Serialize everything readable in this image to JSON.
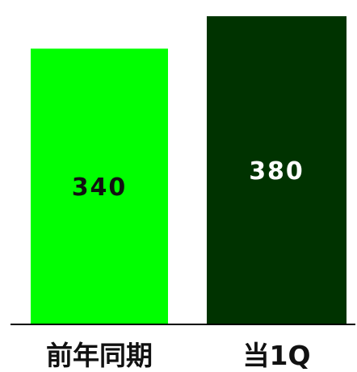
{
  "chart_data": {
    "type": "bar",
    "categories": [
      "前年同期",
      "当1Q"
    ],
    "values": [
      340,
      380
    ],
    "ylim": [
      0,
      400
    ],
    "grid": false,
    "legend": "none",
    "bar_colors": [
      "#00ff00",
      "#003300"
    ],
    "label_colors": [
      "#111111",
      "#ffffff"
    ],
    "axis_color": "#000000"
  }
}
